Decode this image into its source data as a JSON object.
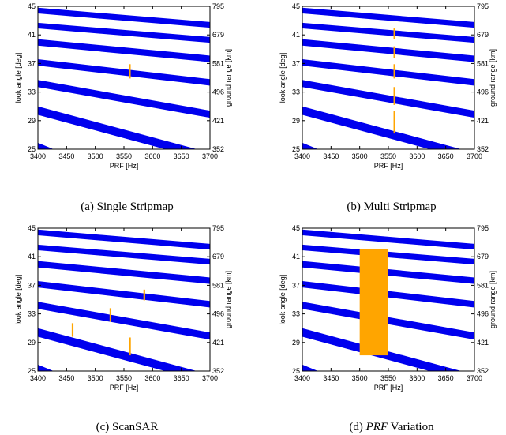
{
  "chart_data": [
    {
      "type": "line",
      "caption": "(a)  Single Stripmap",
      "xlabel": "PRF [Hz]",
      "ylabel": "look angle [deg]",
      "y2label": "ground range [km]",
      "xlim": [
        3400,
        3700
      ],
      "ylim": [
        25,
        45
      ],
      "x_ticks": [
        "3400",
        "3450",
        "3500",
        "3550",
        "3600",
        "3650",
        "3700"
      ],
      "y_ticks": [
        "25",
        "29",
        "33",
        "37",
        "41",
        "45"
      ],
      "y2_ticks": [
        "352",
        "421",
        "496",
        "581",
        "679",
        "795"
      ],
      "band_color": "#0000ee",
      "mark_color": "#ffa500",
      "bands": [
        {
          "y_at_3400": [
            25.9,
            24.5
          ],
          "y_at_3700": [
            16.0,
            14.6
          ]
        },
        {
          "y_at_3400": [
            31.0,
            29.8
          ],
          "y_at_3700": [
            24.5,
            23.3
          ]
        },
        {
          "y_at_3400": [
            34.7,
            33.7
          ],
          "y_at_3700": [
            30.4,
            29.4
          ]
        },
        {
          "y_at_3400": [
            37.6,
            36.7
          ],
          "y_at_3700": [
            34.8,
            33.9
          ]
        },
        {
          "y_at_3400": [
            40.4,
            39.5
          ],
          "y_at_3700": [
            38.1,
            37.2
          ]
        },
        {
          "y_at_3400": [
            42.7,
            41.9
          ],
          "y_at_3700": [
            40.7,
            39.9
          ]
        },
        {
          "y_at_3400": [
            44.8,
            44.0
          ],
          "y_at_3700": [
            42.8,
            42.0
          ]
        }
      ],
      "marks": [
        {
          "x": [
            3559,
            3561
          ],
          "y": [
            34.9,
            36.9
          ]
        }
      ]
    },
    {
      "type": "line",
      "caption": "(b)  Multi Stripmap",
      "xlabel": "PRF [Hz]",
      "ylabel": "look angle [deg]",
      "y2label": "ground range [km]",
      "xlim": [
        3400,
        3700
      ],
      "ylim": [
        25,
        45
      ],
      "x_ticks": [
        "3400",
        "3450",
        "3500",
        "3550",
        "3600",
        "3650",
        "3700"
      ],
      "y_ticks": [
        "25",
        "29",
        "33",
        "37",
        "41",
        "45"
      ],
      "y2_ticks": [
        "352",
        "421",
        "496",
        "581",
        "679",
        "795"
      ],
      "band_color": "#0000ee",
      "mark_color": "#ffa500",
      "bands": [
        {
          "y_at_3400": [
            25.9,
            24.5
          ],
          "y_at_3700": [
            16.0,
            14.6
          ]
        },
        {
          "y_at_3400": [
            31.0,
            29.8
          ],
          "y_at_3700": [
            24.5,
            23.3
          ]
        },
        {
          "y_at_3400": [
            34.7,
            33.7
          ],
          "y_at_3700": [
            30.4,
            29.4
          ]
        },
        {
          "y_at_3400": [
            37.6,
            36.7
          ],
          "y_at_3700": [
            34.8,
            33.9
          ]
        },
        {
          "y_at_3400": [
            40.4,
            39.5
          ],
          "y_at_3700": [
            38.1,
            37.2
          ]
        },
        {
          "y_at_3400": [
            42.7,
            41.9
          ],
          "y_at_3700": [
            40.7,
            39.9
          ]
        },
        {
          "y_at_3400": [
            44.8,
            44.0
          ],
          "y_at_3700": [
            42.8,
            42.0
          ]
        }
      ],
      "marks": [
        {
          "x": [
            3559,
            3561
          ],
          "y": [
            27.2,
            30.4
          ]
        },
        {
          "x": [
            3559,
            3561
          ],
          "y": [
            31.2,
            33.7
          ]
        },
        {
          "x": [
            3559,
            3561
          ],
          "y": [
            34.9,
            36.9
          ]
        },
        {
          "x": [
            3559,
            3561
          ],
          "y": [
            37.8,
            39.4
          ]
        },
        {
          "x": [
            3559,
            3561
          ],
          "y": [
            40.4,
            41.9
          ]
        }
      ]
    },
    {
      "type": "line",
      "caption": "(c)  ScanSAR",
      "xlabel": "PRF [Hz]",
      "ylabel": "look angle [deg]",
      "y2label": "ground range [km]",
      "xlim": [
        3400,
        3700
      ],
      "ylim": [
        25,
        45
      ],
      "x_ticks": [
        "3400",
        "3450",
        "3500",
        "3550",
        "3600",
        "3650",
        "3700"
      ],
      "y_ticks": [
        "25",
        "29",
        "33",
        "37",
        "41",
        "45"
      ],
      "y2_ticks": [
        "352",
        "421",
        "496",
        "581",
        "679",
        "795"
      ],
      "band_color": "#0000ee",
      "mark_color": "#ffa500",
      "bands": [
        {
          "y_at_3400": [
            25.9,
            24.5
          ],
          "y_at_3700": [
            16.0,
            14.6
          ]
        },
        {
          "y_at_3400": [
            31.0,
            29.8
          ],
          "y_at_3700": [
            24.5,
            23.3
          ]
        },
        {
          "y_at_3400": [
            34.7,
            33.7
          ],
          "y_at_3700": [
            30.4,
            29.4
          ]
        },
        {
          "y_at_3400": [
            37.6,
            36.7
          ],
          "y_at_3700": [
            34.8,
            33.9
          ]
        },
        {
          "y_at_3400": [
            40.4,
            39.5
          ],
          "y_at_3700": [
            38.1,
            37.2
          ]
        },
        {
          "y_at_3400": [
            42.7,
            41.9
          ],
          "y_at_3700": [
            40.7,
            39.9
          ]
        },
        {
          "y_at_3400": [
            44.8,
            44.0
          ],
          "y_at_3700": [
            42.8,
            42.0
          ]
        }
      ],
      "marks": [
        {
          "x": [
            3459,
            3462
          ],
          "y": [
            29.8,
            31.7
          ]
        },
        {
          "x": [
            3525,
            3528
          ],
          "y": [
            31.9,
            33.8
          ]
        },
        {
          "x": [
            3559,
            3562
          ],
          "y": [
            27.2,
            29.7
          ]
        },
        {
          "x": [
            3584,
            3587
          ],
          "y": [
            34.9,
            36.4
          ]
        }
      ]
    },
    {
      "type": "line",
      "caption_prefix": "(d)",
      "caption_italic": "PRF",
      "caption_suffix": "Variation",
      "xlabel": "PRF [Hz]",
      "ylabel": "look angle [deg]",
      "y2label": "ground range [km]",
      "xlim": [
        3400,
        3700
      ],
      "ylim": [
        25,
        45
      ],
      "x_ticks": [
        "3400",
        "3450",
        "3500",
        "3550",
        "3600",
        "3650",
        "3700"
      ],
      "y_ticks": [
        "25",
        "29",
        "33",
        "37",
        "41",
        "45"
      ],
      "y2_ticks": [
        "352",
        "421",
        "496",
        "581",
        "679",
        "795"
      ],
      "band_color": "#0000ee",
      "mark_color": "#ffa500",
      "bands": [
        {
          "y_at_3400": [
            25.9,
            24.5
          ],
          "y_at_3700": [
            16.0,
            14.6
          ]
        },
        {
          "y_at_3400": [
            31.0,
            29.8
          ],
          "y_at_3700": [
            24.5,
            23.3
          ]
        },
        {
          "y_at_3400": [
            34.7,
            33.7
          ],
          "y_at_3700": [
            30.4,
            29.4
          ]
        },
        {
          "y_at_3400": [
            37.6,
            36.7
          ],
          "y_at_3700": [
            34.8,
            33.9
          ]
        },
        {
          "y_at_3400": [
            40.4,
            39.5
          ],
          "y_at_3700": [
            38.1,
            37.2
          ]
        },
        {
          "y_at_3400": [
            42.7,
            41.9
          ],
          "y_at_3700": [
            40.7,
            39.9
          ]
        },
        {
          "y_at_3400": [
            44.8,
            44.0
          ],
          "y_at_3700": [
            42.8,
            42.0
          ]
        }
      ],
      "marks": [
        {
          "x": [
            3500,
            3550
          ],
          "y": [
            27.2,
            42.1
          ]
        }
      ]
    }
  ]
}
